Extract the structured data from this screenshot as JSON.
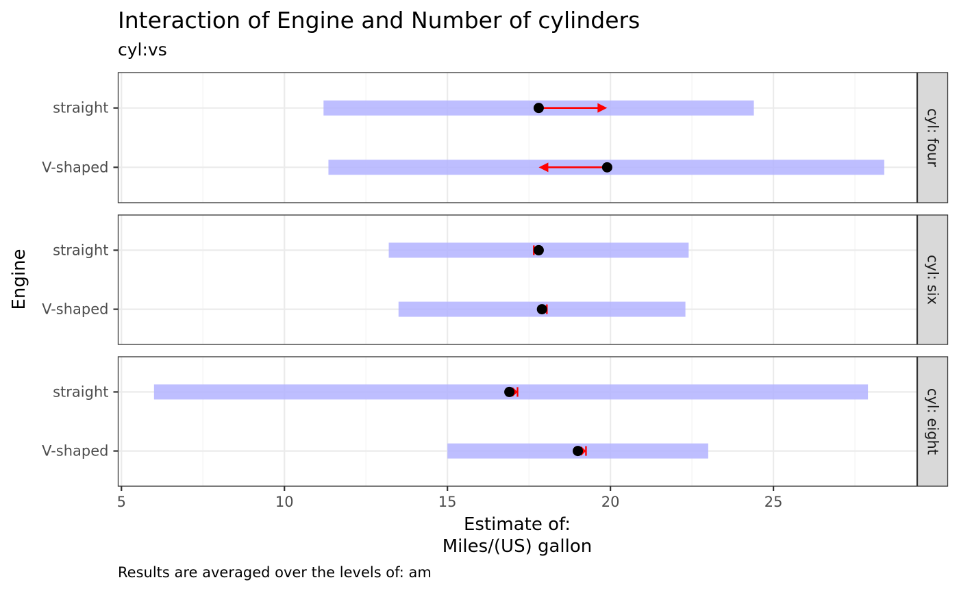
{
  "chart_data": {
    "type": "forest",
    "title": "Interaction of Engine and Number of cylinders",
    "subtitle": "cyl:vs",
    "xlabel_line1": "Estimate of:",
    "xlabel_line2": "Miles/(US) gallon",
    "ylabel": "Engine",
    "caption": "Results are averaged over the levels of: am",
    "xlim": [
      4.9,
      29.4
    ],
    "x_ticks": [
      5,
      10,
      15,
      20,
      25
    ],
    "categories": [
      "straight",
      "V-shaped"
    ],
    "grid": true,
    "colors": {
      "ci_band": "#b3b3ff",
      "arrow": "#ff0000",
      "point": "#000000",
      "strip": "#d9d9d9",
      "grid": "#ebebeb"
    },
    "panels": [
      {
        "strip_label": "cyl: four",
        "rows": [
          {
            "engine": "straight",
            "estimate": 17.8,
            "ci": [
              11.2,
              24.4
            ],
            "arrow_to": 19.9
          },
          {
            "engine": "V-shaped",
            "estimate": 19.9,
            "ci": [
              11.35,
              28.4
            ],
            "arrow_to": 17.8
          }
        ]
      },
      {
        "strip_label": "cyl: six",
        "rows": [
          {
            "engine": "straight",
            "estimate": 17.8,
            "ci": [
              13.2,
              22.4
            ],
            "arrow_to": 17.65
          },
          {
            "engine": "V-shaped",
            "estimate": 17.9,
            "ci": [
              13.5,
              22.3
            ],
            "arrow_to": 18.05
          }
        ]
      },
      {
        "strip_label": "cyl: eight",
        "rows": [
          {
            "engine": "straight",
            "estimate": 16.9,
            "ci": [
              6.0,
              27.9
            ],
            "arrow_to": 17.15
          },
          {
            "engine": "V-shaped",
            "estimate": 19.0,
            "ci": [
              15.0,
              23.0
            ],
            "arrow_to": 19.25
          }
        ]
      }
    ]
  }
}
